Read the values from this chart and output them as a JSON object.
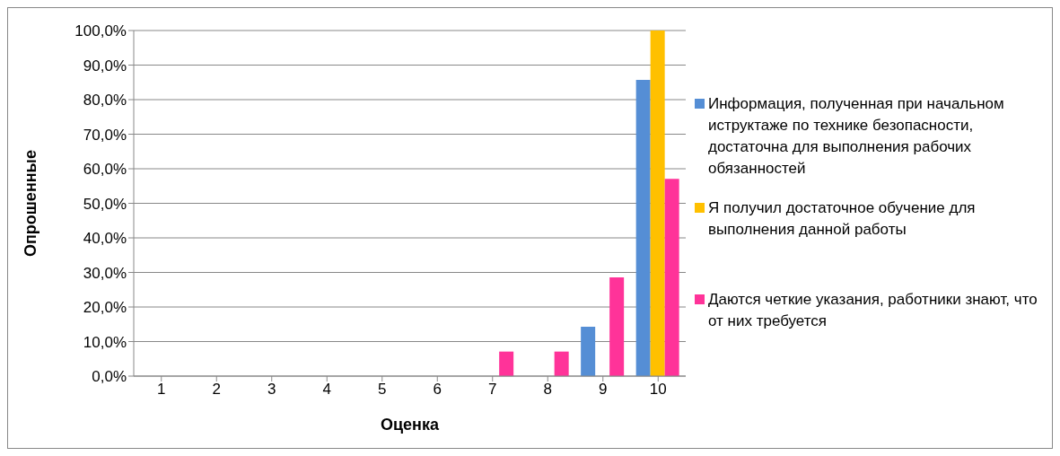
{
  "chart_data": {
    "type": "bar",
    "xlabel": "Оценка",
    "ylabel": "Опрошенные",
    "categories": [
      "1",
      "2",
      "3",
      "4",
      "5",
      "6",
      "7",
      "8",
      "9",
      "10"
    ],
    "series": [
      {
        "name": "Информация, полученная при начальном иструктаже по технике безопасности, достаточна для выполнения рабочих обязанностей",
        "color": "#558ed5",
        "values": [
          0,
          0,
          0,
          0,
          0,
          0,
          0,
          0,
          14.3,
          85.7
        ]
      },
      {
        "name": "Я получил достаточное обучение для выполнения данной работы",
        "color": "#ffc000",
        "values": [
          0,
          0,
          0,
          0,
          0,
          0,
          0,
          0,
          0,
          100
        ]
      },
      {
        "name": "Даются четкие указания, работники знают, что от них требуется",
        "color": "#ff3399",
        "values": [
          0,
          0,
          0,
          0,
          0,
          0,
          7.1,
          7.1,
          28.6,
          57.1
        ]
      }
    ],
    "ylim": [
      0,
      100
    ],
    "yticks": [
      {
        "value": 0,
        "label": "0,0%"
      },
      {
        "value": 10,
        "label": "10,0%"
      },
      {
        "value": 20,
        "label": "20,0%"
      },
      {
        "value": 30,
        "label": "30,0%"
      },
      {
        "value": 40,
        "label": "40,0%"
      },
      {
        "value": 50,
        "label": "50,0%"
      },
      {
        "value": 60,
        "label": "60,0%"
      },
      {
        "value": 70,
        "label": "70,0%"
      },
      {
        "value": 80,
        "label": "80,0%"
      },
      {
        "value": 90,
        "label": "90,0%"
      },
      {
        "value": 100,
        "label": "100,0%"
      }
    ],
    "grid": "y",
    "legend": "right"
  }
}
